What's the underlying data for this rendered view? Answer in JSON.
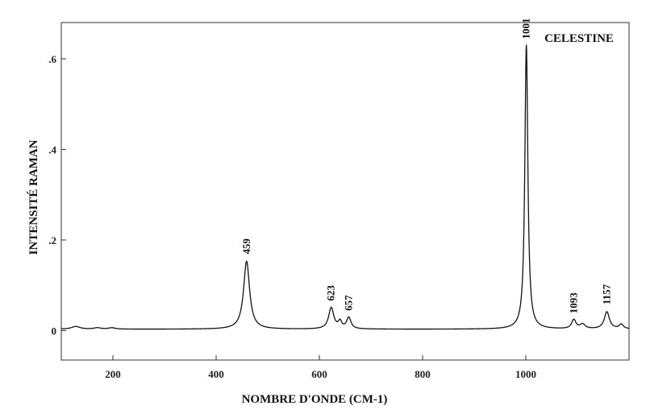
{
  "chart_data": {
    "type": "line",
    "title": "CELESTINE",
    "xlabel": "NOMBRE D'ONDE (CM-1)",
    "ylabel": "INTENSITÉ RAMAN",
    "xlim": [
      100,
      1200
    ],
    "ylim": [
      -0.065,
      0.68
    ],
    "x_ticks": [
      200,
      400,
      600,
      800,
      1000
    ],
    "x_tick_labels": [
      "200",
      "400",
      "600",
      "800",
      "1000"
    ],
    "y_ticks": [
      0,
      0.2,
      0.4,
      0.6
    ],
    "y_tick_labels": [
      "0",
      ".2",
      ".4",
      ".6"
    ],
    "grid": false,
    "baseline": 0.003,
    "peaks": [
      {
        "x": 128,
        "height": 0.006,
        "width": 10
      },
      {
        "x": 170,
        "height": 0.003,
        "width": 8
      },
      {
        "x": 198,
        "height": 0.003,
        "width": 8
      },
      {
        "x": 459,
        "height": 0.15,
        "width": 7
      },
      {
        "x": 623,
        "height": 0.047,
        "width": 6
      },
      {
        "x": 640,
        "height": 0.015,
        "width": 4
      },
      {
        "x": 657,
        "height": 0.025,
        "width": 5
      },
      {
        "x": 1001,
        "height": 0.628,
        "width": 3.5
      },
      {
        "x": 1093,
        "height": 0.02,
        "width": 5
      },
      {
        "x": 1110,
        "height": 0.01,
        "width": 6
      },
      {
        "x": 1157,
        "height": 0.038,
        "width": 6
      },
      {
        "x": 1185,
        "height": 0.01,
        "width": 5
      }
    ],
    "peak_labels": [
      {
        "text": "459",
        "x": 459,
        "y": 0.165
      },
      {
        "text": "623",
        "x": 623,
        "y": 0.062
      },
      {
        "text": "657",
        "x": 657,
        "y": 0.04
      },
      {
        "text": "1001",
        "x": 1001,
        "y": 0.64
      },
      {
        "text": "1093",
        "x": 1093,
        "y": 0.034
      },
      {
        "text": "1157",
        "x": 1157,
        "y": 0.054
      }
    ]
  }
}
